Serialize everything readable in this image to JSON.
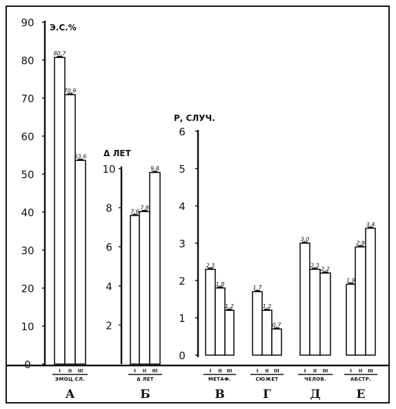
{
  "chart_data": [
    {
      "id": "A",
      "type": "bar",
      "letter": "А",
      "category_label": "ЭМОЦ.СЛ.",
      "ylabel": "Э.С.%",
      "ylim": [
        0,
        90
      ],
      "yticks": [
        "0",
        "10",
        "20",
        "30",
        "40",
        "50",
        "60",
        "70",
        "80",
        "90"
      ],
      "conditions": [
        "I",
        "II",
        "III"
      ],
      "values": [
        80.7,
        70.9,
        53.6
      ],
      "value_labels": [
        "80,7",
        "70,9",
        "53,6"
      ]
    },
    {
      "id": "B",
      "type": "bar",
      "letter": "Б",
      "category_label": "Δ ЛЕТ",
      "ylabel": "Δ ЛЕТ",
      "ylim": [
        0,
        10
      ],
      "yticks": [
        "2",
        "4",
        "6",
        "8",
        "10"
      ],
      "conditions": [
        "I",
        "II",
        "III"
      ],
      "values": [
        7.6,
        7.8,
        9.8
      ],
      "value_labels": [
        "7,6",
        "7,8",
        "9,8"
      ]
    },
    {
      "id": "C",
      "type": "bar",
      "letter": "В",
      "category_label": "МЕТАФ.",
      "ylabel": "Р, СЛУЧ.",
      "ylim": [
        0,
        6
      ],
      "yticks": [
        "0",
        "1",
        "2",
        "3",
        "4",
        "5",
        "6"
      ],
      "conditions": [
        "I",
        "II",
        "III"
      ],
      "values": [
        2.3,
        1.8,
        1.2
      ],
      "value_labels": [
        "2,3",
        "1,8",
        "1,2"
      ]
    },
    {
      "id": "D",
      "type": "bar",
      "letter": "Г",
      "category_label": "СЮЖЕТ",
      "ylim": [
        0,
        6
      ],
      "conditions": [
        "I",
        "II",
        "III"
      ],
      "values": [
        1.7,
        1.2,
        0.7
      ],
      "value_labels": [
        "1,7",
        "1,2",
        "0,7"
      ]
    },
    {
      "id": "E",
      "type": "bar",
      "letter": "Д",
      "category_label": "ЧЕЛОВ.",
      "ylim": [
        0,
        6
      ],
      "conditions": [
        "I",
        "II",
        "III"
      ],
      "values": [
        3.0,
        2.3,
        2.2
      ],
      "value_labels": [
        "3,0",
        "2,3",
        "2,2"
      ]
    },
    {
      "id": "F",
      "type": "bar",
      "letter": "Е",
      "category_label": "АБСТР.",
      "ylim": [
        0,
        6
      ],
      "conditions": [
        "I",
        "II",
        "III"
      ],
      "values": [
        1.9,
        2.9,
        3.4
      ],
      "value_labels": [
        "1,9",
        "2,9",
        "3,4"
      ]
    }
  ]
}
